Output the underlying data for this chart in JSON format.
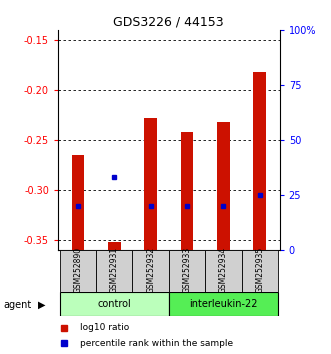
{
  "title": "GDS3226 / 44153",
  "samples": [
    "GSM252890",
    "GSM252931",
    "GSM252932",
    "GSM252933",
    "GSM252934",
    "GSM252935"
  ],
  "log10_ratio": [
    -0.265,
    -0.352,
    -0.228,
    -0.242,
    -0.232,
    -0.182
  ],
  "percentile_rank": [
    20.0,
    33.0,
    20.0,
    20.0,
    20.0,
    25.0
  ],
  "groups": [
    {
      "label": "control",
      "indices": [
        0,
        1,
        2
      ],
      "color": "#b3ffb3"
    },
    {
      "label": "interleukin-22",
      "indices": [
        3,
        4,
        5
      ],
      "color": "#55ee55"
    }
  ],
  "agent_label": "agent",
  "ylim_left": [
    -0.36,
    -0.14
  ],
  "ylim_right": [
    0,
    100
  ],
  "yticks_left": [
    -0.35,
    -0.3,
    -0.25,
    -0.2,
    -0.15
  ],
  "yticks_right": [
    0,
    25,
    50,
    75,
    100
  ],
  "ytick_labels_left": [
    "-0.35",
    "-0.30",
    "-0.25",
    "-0.20",
    "-0.15"
  ],
  "ytick_labels_right": [
    "0",
    "25",
    "50",
    "75",
    "100%"
  ],
  "bar_color": "#cc1100",
  "dot_color": "#0000cc",
  "bar_width": 0.35,
  "grid_color": "black",
  "bg_color": "#ffffff",
  "plot_bg_color": "#ffffff",
  "label_area_color": "#d0d0d0",
  "control_color": "#bbffbb",
  "interleukin_color": "#55ee55",
  "legend_red_label": "log10 ratio",
  "legend_blue_label": "percentile rank within the sample"
}
